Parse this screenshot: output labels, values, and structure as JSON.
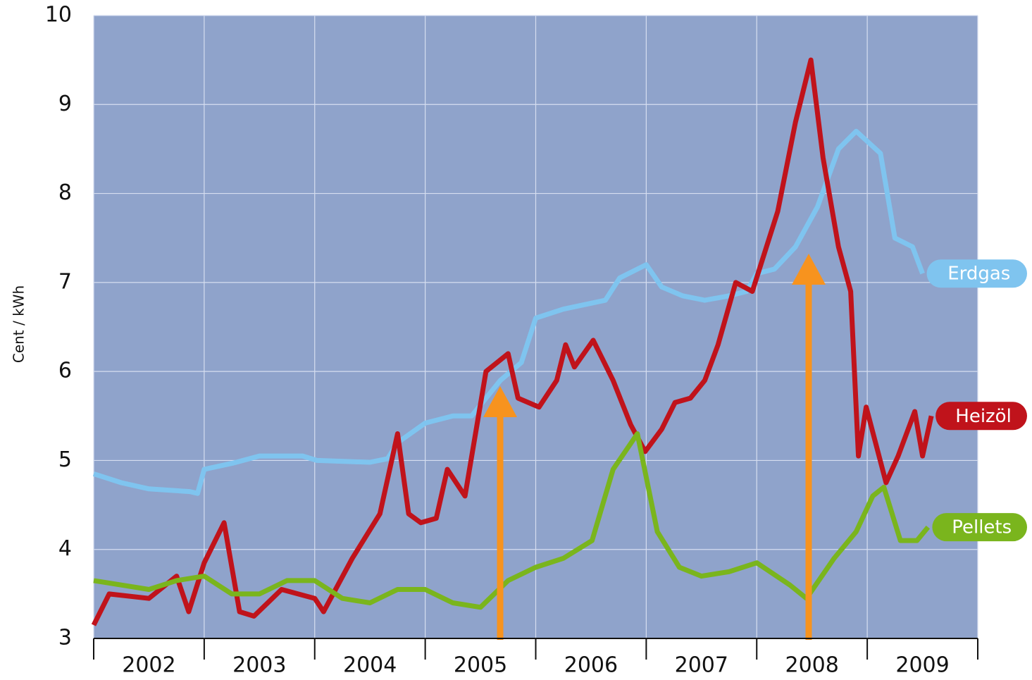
{
  "chart_data": {
    "type": "line",
    "y_label": "Cent / kWh",
    "xlim": [
      2002,
      2010
    ],
    "xticks": [
      2002,
      2003,
      2004,
      2005,
      2006,
      2007,
      2008,
      2009,
      2010
    ],
    "year_labels": [
      "2002",
      "2003",
      "2004",
      "2005",
      "2006",
      "2007",
      "2008",
      "2009"
    ],
    "ylim": [
      3,
      10
    ],
    "yticks": [
      3,
      4,
      5,
      6,
      7,
      8,
      9,
      10
    ],
    "grid": true,
    "series": [
      {
        "name": "Erdgas",
        "color": "#7fc4ef",
        "x": [
          2002.0,
          2002.25,
          2002.5,
          2002.87,
          2002.94,
          2003.0,
          2003.26,
          2003.5,
          2003.89,
          2004.02,
          2004.5,
          2004.66,
          2004.75,
          2005.0,
          2005.25,
          2005.42,
          2005.68,
          2005.87,
          2006.0,
          2006.25,
          2006.63,
          2006.76,
          2007.0,
          2007.14,
          2007.33,
          2007.53,
          2007.75,
          2007.91,
          2008.0,
          2008.16,
          2008.35,
          2008.55,
          2008.74,
          2008.9,
          2009.12,
          2009.25,
          2009.41,
          2009.5
        ],
        "values": [
          4.85,
          4.75,
          4.68,
          4.65,
          4.63,
          4.9,
          4.97,
          5.05,
          5.05,
          5.0,
          4.98,
          5.02,
          5.2,
          5.42,
          5.5,
          5.5,
          5.9,
          6.1,
          6.6,
          6.7,
          6.8,
          7.05,
          7.2,
          6.95,
          6.85,
          6.8,
          6.85,
          6.9,
          7.1,
          7.15,
          7.4,
          7.85,
          8.5,
          8.7,
          8.45,
          7.5,
          7.4,
          7.1
        ]
      },
      {
        "name": "Heizöl",
        "color": "#c0131b",
        "x": [
          2002.0,
          2002.14,
          2002.5,
          2002.75,
          2002.86,
          2003.0,
          2003.18,
          2003.32,
          2003.45,
          2003.7,
          2004.0,
          2004.08,
          2004.34,
          2004.59,
          2004.75,
          2004.85,
          2004.96,
          2005.1,
          2005.2,
          2005.36,
          2005.55,
          2005.75,
          2005.84,
          2006.03,
          2006.19,
          2006.27,
          2006.35,
          2006.52,
          2006.7,
          2006.86,
          2006.99,
          2007.14,
          2007.26,
          2007.4,
          2007.53,
          2007.65,
          2007.81,
          2007.96,
          2008.19,
          2008.35,
          2008.49,
          2008.6,
          2008.74,
          2008.85,
          2008.92,
          2008.99,
          2009.17,
          2009.28,
          2009.43,
          2009.5,
          2009.58
        ],
        "values": [
          3.15,
          3.5,
          3.45,
          3.7,
          3.3,
          3.85,
          4.3,
          3.3,
          3.25,
          3.55,
          3.45,
          3.3,
          3.9,
          4.4,
          5.3,
          4.4,
          4.3,
          4.35,
          4.9,
          4.6,
          6.0,
          6.2,
          5.7,
          5.6,
          5.9,
          6.3,
          6.05,
          6.35,
          5.9,
          5.4,
          5.1,
          5.35,
          5.65,
          5.7,
          5.9,
          6.3,
          7.0,
          6.9,
          7.8,
          8.8,
          9.5,
          8.4,
          7.4,
          6.9,
          5.05,
          5.6,
          4.75,
          5.05,
          5.55,
          5.05,
          5.5
        ]
      },
      {
        "name": "Pellets",
        "color": "#7ab51d",
        "x": [
          2002.0,
          2002.25,
          2002.5,
          2002.75,
          2003.0,
          2003.25,
          2003.5,
          2003.75,
          2004.0,
          2004.25,
          2004.5,
          2004.75,
          2005.0,
          2005.25,
          2005.5,
          2005.75,
          2006.0,
          2006.25,
          2006.51,
          2006.7,
          2006.92,
          2007.1,
          2007.3,
          2007.5,
          2007.75,
          2008.0,
          2008.3,
          2008.45,
          2008.7,
          2008.9,
          2009.05,
          2009.15,
          2009.3,
          2009.45,
          2009.55
        ],
        "values": [
          3.65,
          3.6,
          3.55,
          3.65,
          3.7,
          3.5,
          3.5,
          3.65,
          3.65,
          3.45,
          3.4,
          3.55,
          3.55,
          3.4,
          3.35,
          3.65,
          3.8,
          3.9,
          4.1,
          4.9,
          5.3,
          4.2,
          3.8,
          3.7,
          3.75,
          3.85,
          3.6,
          3.45,
          3.9,
          4.2,
          4.6,
          4.7,
          4.1,
          4.1,
          4.25
        ]
      }
    ]
  }
}
